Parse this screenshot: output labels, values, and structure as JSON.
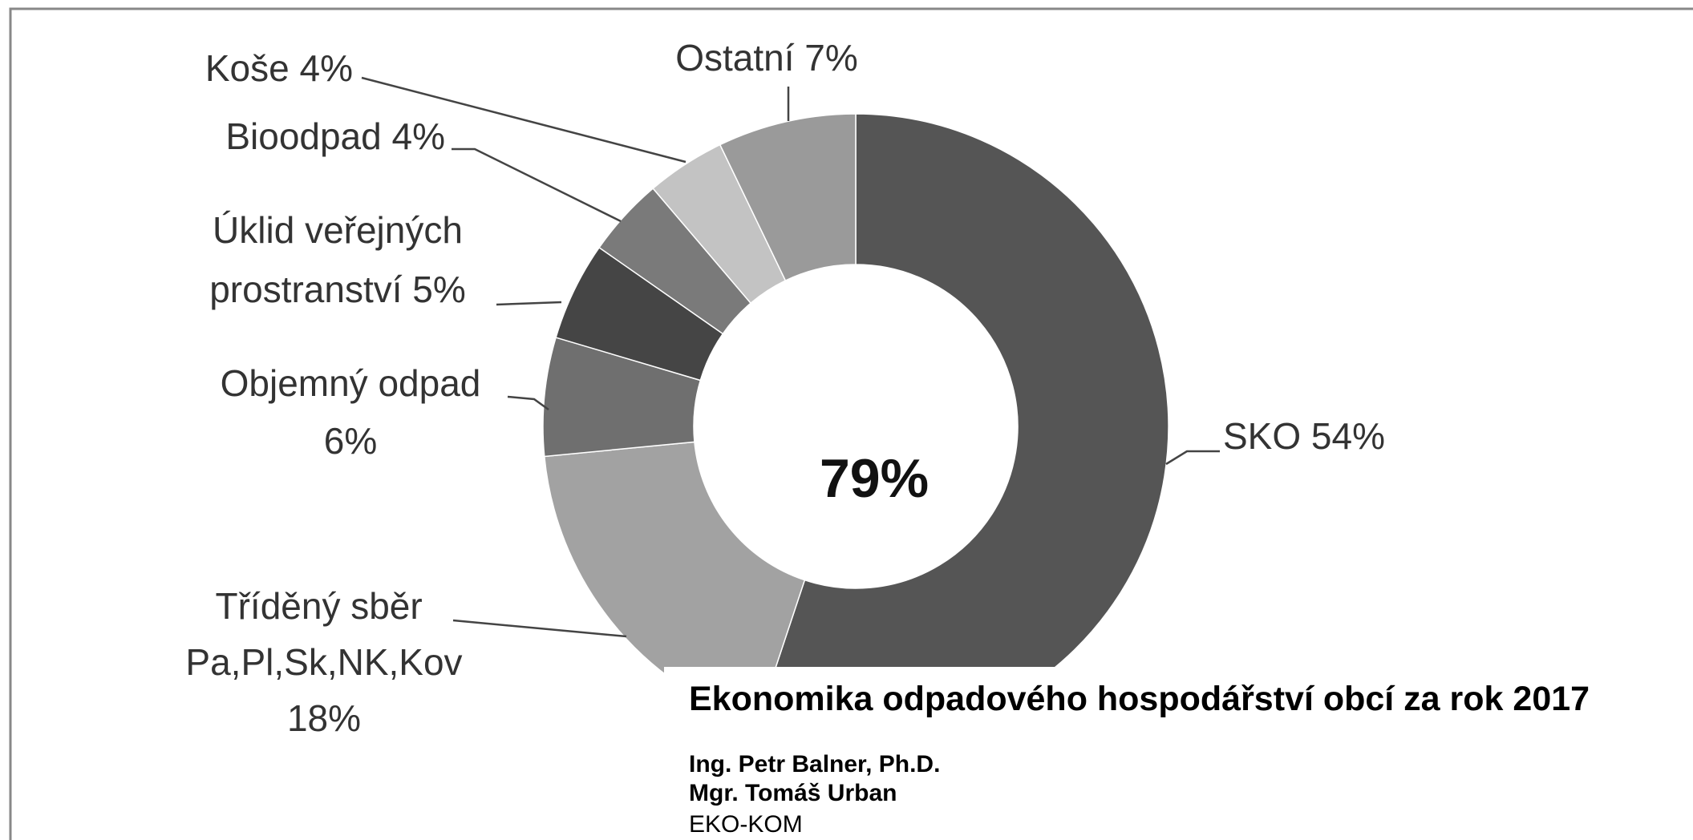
{
  "chart_data": {
    "type": "donut",
    "categories": [
      "SKO",
      "Tříděný sběr Pa,Pl,Sk,NK,Kov",
      "Objemný odpad",
      "Úklid veřejných prostranství",
      "Bioodpad",
      "Koše",
      "Ostatní"
    ],
    "values": [
      54,
      18,
      6,
      5,
      4,
      4,
      7
    ],
    "value_labels": [
      "54%",
      "18%",
      "6%",
      "5%",
      "4%",
      "4%",
      "7%"
    ],
    "colors": [
      "#555555",
      "#a2a2a2",
      "#6f6f6f",
      "#454545",
      "#7a7a7a",
      "#c3c3c3",
      "#9a9a9a"
    ],
    "annotation": "79%"
  },
  "document": {
    "title": "Ekonomika odpadového hospodářství obcí za rok 2017",
    "lines": [
      "Ing. Petr Balner, Ph.D.",
      "Mgr. Tomáš Urban",
      "EKO-KOM"
    ]
  }
}
